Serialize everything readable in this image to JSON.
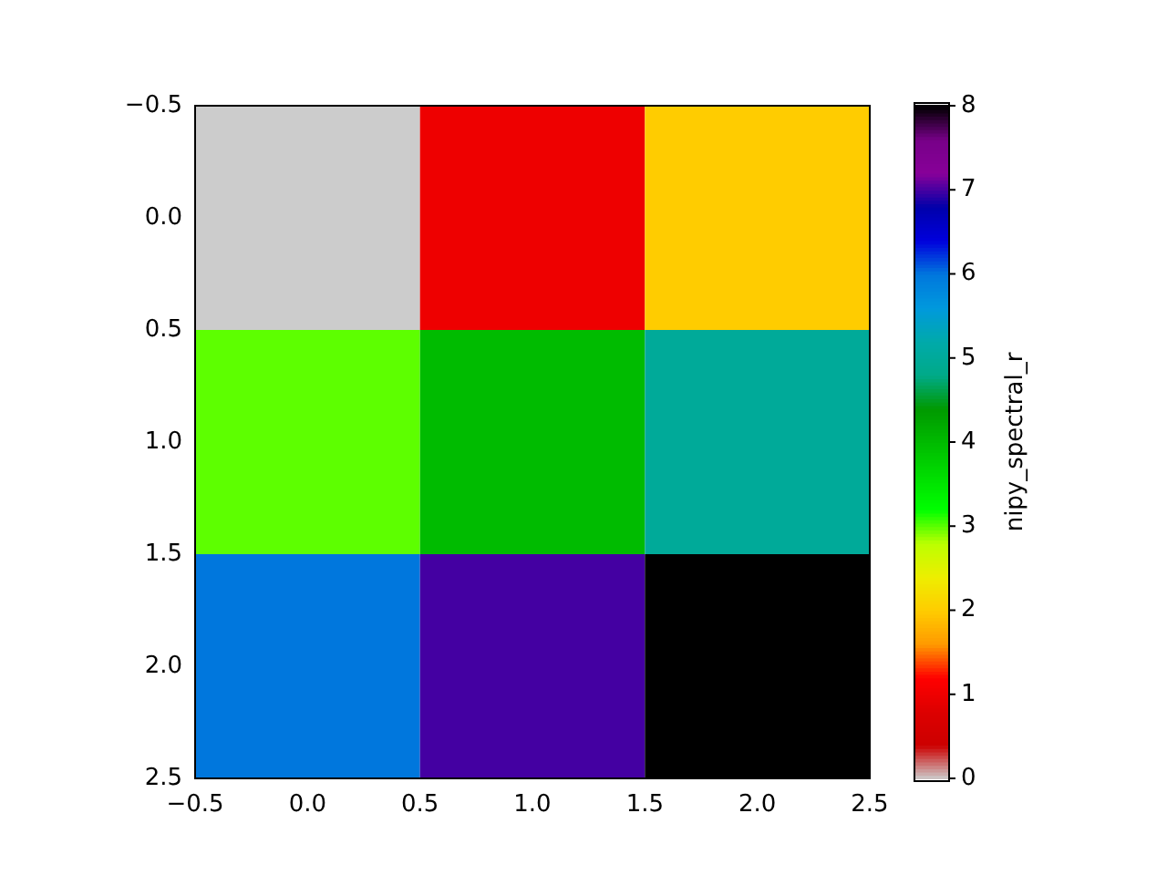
{
  "chart_data": {
    "type": "heatmap",
    "cells": [
      [
        0,
        1,
        2
      ],
      [
        3,
        4,
        5
      ],
      [
        6,
        7,
        8
      ]
    ],
    "xlim": [
      -0.5,
      2.5
    ],
    "xticks": [
      {
        "value": -0.5,
        "label": "−0.5"
      },
      {
        "value": 0,
        "label": "0.0"
      },
      {
        "value": 0.5,
        "label": "0.5"
      },
      {
        "value": 1,
        "label": "1.0"
      },
      {
        "value": 1.5,
        "label": "1.5"
      },
      {
        "value": 2,
        "label": "2.0"
      },
      {
        "value": 2.5,
        "label": "2.5"
      }
    ],
    "ylim": [
      2.5,
      -0.5
    ],
    "yticks": [
      {
        "value": -0.5,
        "label": "−0.5"
      },
      {
        "value": 0,
        "label": "0.0"
      },
      {
        "value": 0.5,
        "label": "0.5"
      },
      {
        "value": 1,
        "label": "1.0"
      },
      {
        "value": 1.5,
        "label": "1.5"
      },
      {
        "value": 2,
        "label": "2.0"
      },
      {
        "value": 2.5,
        "label": "2.5"
      }
    ],
    "clim": [
      0,
      8
    ],
    "cticks": [
      0,
      1,
      2,
      3,
      4,
      5,
      6,
      7,
      8
    ],
    "clabel": "nipy_spectral_r",
    "grid": false
  }
}
